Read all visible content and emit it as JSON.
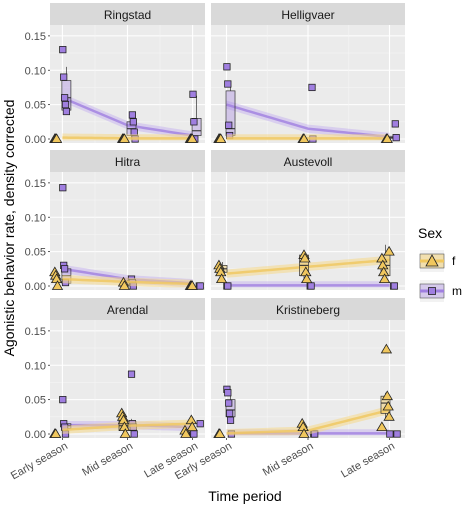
{
  "chart_data": {
    "type": "scatter",
    "xlabel": "Time period",
    "ylabel": "Agonistic behavior rate, density corrected",
    "categories": [
      "Early season",
      "Mid season",
      "Late season"
    ],
    "ylim": [
      0,
      0.16
    ],
    "yticks": [
      "0.00",
      "0.05",
      "0.10",
      "0.15"
    ],
    "legend": {
      "title": "Sex",
      "entries": [
        {
          "key": "f",
          "label": "f",
          "color": "#f0c75e",
          "marker": "triangle"
        },
        {
          "key": "m",
          "label": "m",
          "color": "#a07fe0",
          "marker": "square"
        }
      ],
      "position": "right"
    },
    "panels": [
      {
        "title": "Ringstad",
        "f": {
          "points": [
            [
              0,
              0
            ],
            [
              0,
              0
            ],
            [
              0,
              0
            ],
            [
              1,
              0
            ],
            [
              1,
              0
            ],
            [
              1,
              0
            ],
            [
              2,
              0
            ],
            [
              2,
              0
            ],
            [
              2,
              0
            ]
          ],
          "trend": [
            0.002,
            0.001,
            0.001
          ]
        },
        "m": {
          "points": [
            [
              0,
              0.13
            ],
            [
              0,
              0.09
            ],
            [
              0,
              0.06
            ],
            [
              0,
              0.05
            ],
            [
              0,
              0.04
            ],
            [
              1,
              0.035
            ],
            [
              1,
              0.025
            ],
            [
              1,
              0.01
            ],
            [
              1,
              0
            ],
            [
              2,
              0.065
            ],
            [
              2,
              0.025
            ],
            [
              2,
              0
            ]
          ],
          "trend": [
            0.06,
            0.02,
            0.005
          ],
          "box": [
            [
              0,
              0.035,
              0.042,
              0.06,
              0.085,
              0.105
            ],
            [
              1,
              0,
              0.005,
              0.015,
              0.025,
              0.035
            ],
            [
              2,
              0,
              0.005,
              0.012,
              0.03,
              0.063
            ]
          ]
        }
      },
      {
        "title": "Helligvaer",
        "f": {
          "points": [
            [
              0,
              0
            ],
            [
              0,
              0
            ],
            [
              0,
              0
            ],
            [
              1,
              0
            ],
            [
              1,
              0
            ],
            [
              2,
              0
            ],
            [
              2,
              0
            ]
          ],
          "trend": [
            0.001,
            0.001,
            0.001
          ]
        },
        "m": {
          "points": [
            [
              0,
              0.105
            ],
            [
              0,
              0.08
            ],
            [
              0,
              0.02
            ],
            [
              0,
              0.005
            ],
            [
              1,
              0.075
            ],
            [
              1,
              0
            ],
            [
              2,
              0.022
            ],
            [
              2,
              0.002
            ]
          ],
          "trend": [
            0.05,
            0.015,
            0.003
          ],
          "box": [
            [
              0,
              0,
              0.005,
              0.015,
              0.07,
              0.085
            ],
            [
              2,
              0,
              0.001,
              0.002,
              0.004,
              0.005
            ]
          ]
        }
      },
      {
        "title": "Hitra",
        "f": {
          "points": [
            [
              0,
              0.02
            ],
            [
              0,
              0.015
            ],
            [
              0,
              0.01
            ],
            [
              0,
              0
            ],
            [
              1,
              0.005
            ],
            [
              1,
              0
            ],
            [
              2,
              0
            ],
            [
              2,
              0
            ],
            [
              2,
              0
            ]
          ],
          "trend": [
            0.01,
            0.006,
            0.003
          ]
        },
        "m": {
          "points": [
            [
              0,
              0.143
            ],
            [
              0,
              0.03
            ],
            [
              0,
              0.025
            ],
            [
              0,
              0.005
            ],
            [
              1,
              0.01
            ],
            [
              1,
              0.005
            ],
            [
              1,
              0
            ],
            [
              2,
              0
            ],
            [
              2,
              0
            ]
          ],
          "trend": [
            0.025,
            0.01,
            0.004
          ],
          "box": [
            [
              0,
              0,
              0.004,
              0.015,
              0.025,
              0.03
            ],
            [
              1,
              0,
              0.002,
              0.005,
              0.008,
              0.01
            ]
          ]
        }
      },
      {
        "title": "Austevoll",
        "f": {
          "points": [
            [
              0,
              0.03
            ],
            [
              0,
              0.025
            ],
            [
              0,
              0.02
            ],
            [
              0,
              0.01
            ],
            [
              1,
              0.045
            ],
            [
              1,
              0.04
            ],
            [
              1,
              0.02
            ],
            [
              1,
              0.01
            ],
            [
              2,
              0.05
            ],
            [
              2,
              0.04
            ],
            [
              2,
              0.03
            ],
            [
              2,
              0.02
            ],
            [
              2,
              0.01
            ]
          ],
          "trend": [
            0.018,
            0.028,
            0.038
          ],
          "box": [
            [
              0,
              0.015,
              0.02,
              0.025,
              0.03,
              0.035
            ],
            [
              1,
              0.01,
              0.015,
              0.03,
              0.045,
              0.05
            ],
            [
              2,
              0.005,
              0.015,
              0.03,
              0.045,
              0.06
            ]
          ]
        },
        "m": {
          "points": [
            [
              0,
              0
            ],
            [
              0,
              0
            ],
            [
              1,
              0
            ],
            [
              1,
              0
            ],
            [
              2,
              0
            ],
            [
              2,
              0
            ]
          ],
          "trend": [
            0.001,
            0.001,
            0.001
          ]
        }
      },
      {
        "title": "Arendal",
        "f": {
          "points": [
            [
              0,
              0
            ],
            [
              0,
              0
            ],
            [
              1,
              0.03
            ],
            [
              1,
              0.025
            ],
            [
              1,
              0.02
            ],
            [
              1,
              0.01
            ],
            [
              1,
              0
            ],
            [
              2,
              0.02
            ],
            [
              2,
              0.01
            ],
            [
              2,
              0.005
            ],
            [
              2,
              0
            ]
          ],
          "trend": [
            0.006,
            0.012,
            0.015
          ],
          "box": [
            [
              1,
              0,
              0.005,
              0.012,
              0.02,
              0.028
            ]
          ]
        },
        "m": {
          "points": [
            [
              0,
              0.05
            ],
            [
              0,
              0.015
            ],
            [
              0,
              0.01
            ],
            [
              0,
              0
            ],
            [
              1,
              0.087
            ],
            [
              1,
              0.015
            ],
            [
              1,
              0.01
            ],
            [
              1,
              0
            ],
            [
              2,
              0.015
            ],
            [
              2,
              0
            ],
            [
              2,
              0
            ]
          ],
          "trend": [
            0.013,
            0.013,
            0.01
          ],
          "box": [
            [
              0,
              0,
              0.008,
              0.012,
              0.015,
              0.018
            ],
            [
              1,
              0,
              0.005,
              0.012,
              0.018,
              0.022
            ]
          ]
        }
      },
      {
        "title": "Kristineberg",
        "f": {
          "points": [
            [
              0,
              0
            ],
            [
              0,
              0
            ],
            [
              1,
              0.015
            ],
            [
              1,
              0.01
            ],
            [
              1,
              0
            ],
            [
              2,
              0.123
            ],
            [
              2,
              0.055
            ],
            [
              2,
              0.04
            ],
            [
              2,
              0.025
            ],
            [
              2,
              0.01
            ]
          ],
          "trend": [
            0.001,
            0.005,
            0.035
          ],
          "box": [
            [
              2,
              0.02,
              0.03,
              0.045,
              0.055,
              0.06
            ]
          ]
        },
        "m": {
          "points": [
            [
              0,
              0.065
            ],
            [
              0,
              0.06
            ],
            [
              0,
              0.045
            ],
            [
              0,
              0.03
            ],
            [
              0,
              0.02
            ],
            [
              0,
              0
            ],
            [
              1,
              0
            ],
            [
              1,
              0
            ],
            [
              2,
              0
            ],
            [
              2,
              0
            ]
          ],
          "trend": [
            0.001,
            0.001,
            0.001
          ],
          "box": [
            [
              0,
              0.015,
              0.025,
              0.035,
              0.05,
              0.06
            ]
          ]
        }
      }
    ]
  }
}
